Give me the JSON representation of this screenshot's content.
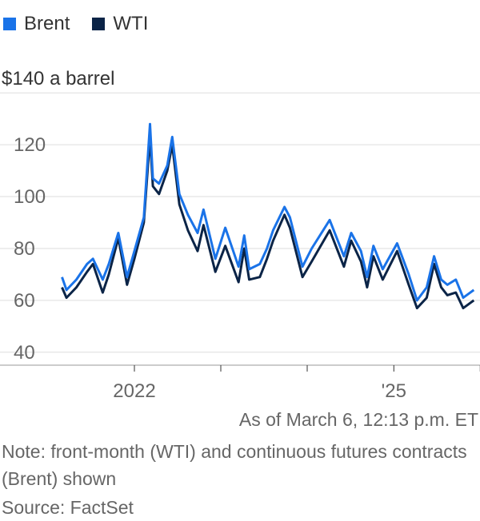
{
  "legend": {
    "items": [
      {
        "label": "Brent",
        "color": "#1a73e8"
      },
      {
        "label": "WTI",
        "color": "#0b2447"
      }
    ]
  },
  "footer": {
    "as_of": "As of March 6, 12:13 p.m. ET",
    "note": "Note: front-month (WTI) and continuous futures contracts (Brent) shown",
    "source": "Source: FactSet"
  },
  "chart_data": {
    "type": "line",
    "title": "",
    "xlabel": "",
    "ylabel": "",
    "y_unit_label": "a barrel",
    "y_top_label": "$140",
    "yticks": [
      40,
      60,
      80,
      100,
      120
    ],
    "ylim": [
      35,
      145
    ],
    "xlim": [
      "2021-01-01",
      "2025-12-31"
    ],
    "x_tick_labels": [
      "2022",
      "'25"
    ],
    "x_tick_dates": [
      "2022-01-01",
      "2023-01-01",
      "2024-01-01",
      "2025-01-01",
      "2026-01-01"
    ],
    "grid": true,
    "legend_position": "top-left",
    "series": [
      {
        "name": "Brent",
        "color": "#1a73e8",
        "points": [
          [
            "2021-03-01",
            69
          ],
          [
            "2021-03-20",
            64
          ],
          [
            "2021-05-01",
            68
          ],
          [
            "2021-06-15",
            74
          ],
          [
            "2021-07-10",
            76
          ],
          [
            "2021-08-20",
            68
          ],
          [
            "2021-09-15",
            74
          ],
          [
            "2021-10-25",
            86
          ],
          [
            "2021-12-01",
            69
          ],
          [
            "2022-01-01",
            79
          ],
          [
            "2022-02-10",
            92
          ],
          [
            "2022-03-08",
            128
          ],
          [
            "2022-03-20",
            107
          ],
          [
            "2022-04-15",
            105
          ],
          [
            "2022-05-20",
            112
          ],
          [
            "2022-06-10",
            123
          ],
          [
            "2022-07-10",
            101
          ],
          [
            "2022-08-15",
            93
          ],
          [
            "2022-09-25",
            86
          ],
          [
            "2022-10-20",
            95
          ],
          [
            "2022-12-09",
            76
          ],
          [
            "2023-01-20",
            88
          ],
          [
            "2023-03-17",
            73
          ],
          [
            "2023-04-10",
            85
          ],
          [
            "2023-05-01",
            72
          ],
          [
            "2023-06-15",
            74
          ],
          [
            "2023-07-15",
            80
          ],
          [
            "2023-08-10",
            87
          ],
          [
            "2023-09-27",
            96
          ],
          [
            "2023-10-20",
            92
          ],
          [
            "2023-12-12",
            73
          ],
          [
            "2024-01-20",
            80
          ],
          [
            "2024-04-05",
            91
          ],
          [
            "2024-06-04",
            77
          ],
          [
            "2024-07-05",
            86
          ],
          [
            "2024-08-15",
            79
          ],
          [
            "2024-09-10",
            69
          ],
          [
            "2024-10-07",
            81
          ],
          [
            "2024-11-15",
            72
          ],
          [
            "2025-01-15",
            82
          ],
          [
            "2025-03-05",
            70
          ],
          [
            "2025-04-09",
            60
          ],
          [
            "2025-05-20",
            65
          ],
          [
            "2025-06-20",
            77
          ],
          [
            "2025-07-20",
            68
          ],
          [
            "2025-08-15",
            66
          ],
          [
            "2025-09-20",
            68
          ],
          [
            "2025-10-21",
            61
          ],
          [
            "2025-11-20",
            63
          ],
          [
            "2025-12-05",
            64
          ]
        ]
      },
      {
        "name": "WTI",
        "color": "#0b2447",
        "points": [
          [
            "2021-03-01",
            65
          ],
          [
            "2021-03-20",
            61
          ],
          [
            "2021-05-01",
            65
          ],
          [
            "2021-06-15",
            71
          ],
          [
            "2021-07-10",
            74
          ],
          [
            "2021-08-20",
            63
          ],
          [
            "2021-09-15",
            70
          ],
          [
            "2021-10-25",
            84
          ],
          [
            "2021-12-01",
            66
          ],
          [
            "2022-01-01",
            76
          ],
          [
            "2022-02-10",
            90
          ],
          [
            "2022-03-08",
            123
          ],
          [
            "2022-03-20",
            104
          ],
          [
            "2022-04-15",
            101
          ],
          [
            "2022-05-20",
            110
          ],
          [
            "2022-06-10",
            120
          ],
          [
            "2022-07-10",
            97
          ],
          [
            "2022-08-15",
            87
          ],
          [
            "2022-09-25",
            79
          ],
          [
            "2022-10-20",
            89
          ],
          [
            "2022-12-09",
            71
          ],
          [
            "2023-01-20",
            81
          ],
          [
            "2023-03-17",
            67
          ],
          [
            "2023-04-10",
            80
          ],
          [
            "2023-05-01",
            68
          ],
          [
            "2023-06-15",
            69
          ],
          [
            "2023-07-15",
            76
          ],
          [
            "2023-08-10",
            83
          ],
          [
            "2023-09-27",
            93
          ],
          [
            "2023-10-20",
            88
          ],
          [
            "2023-12-12",
            69
          ],
          [
            "2024-01-20",
            75
          ],
          [
            "2024-04-05",
            87
          ],
          [
            "2024-06-04",
            73
          ],
          [
            "2024-07-05",
            83
          ],
          [
            "2024-08-15",
            75
          ],
          [
            "2024-09-10",
            65
          ],
          [
            "2024-10-07",
            77
          ],
          [
            "2024-11-15",
            68
          ],
          [
            "2025-01-15",
            79
          ],
          [
            "2025-03-05",
            66
          ],
          [
            "2025-04-09",
            57
          ],
          [
            "2025-05-20",
            61
          ],
          [
            "2025-06-20",
            74
          ],
          [
            "2025-07-20",
            65
          ],
          [
            "2025-08-15",
            62
          ],
          [
            "2025-09-20",
            63
          ],
          [
            "2025-10-21",
            57
          ],
          [
            "2025-11-20",
            59
          ],
          [
            "2025-12-05",
            60
          ]
        ]
      }
    ]
  }
}
